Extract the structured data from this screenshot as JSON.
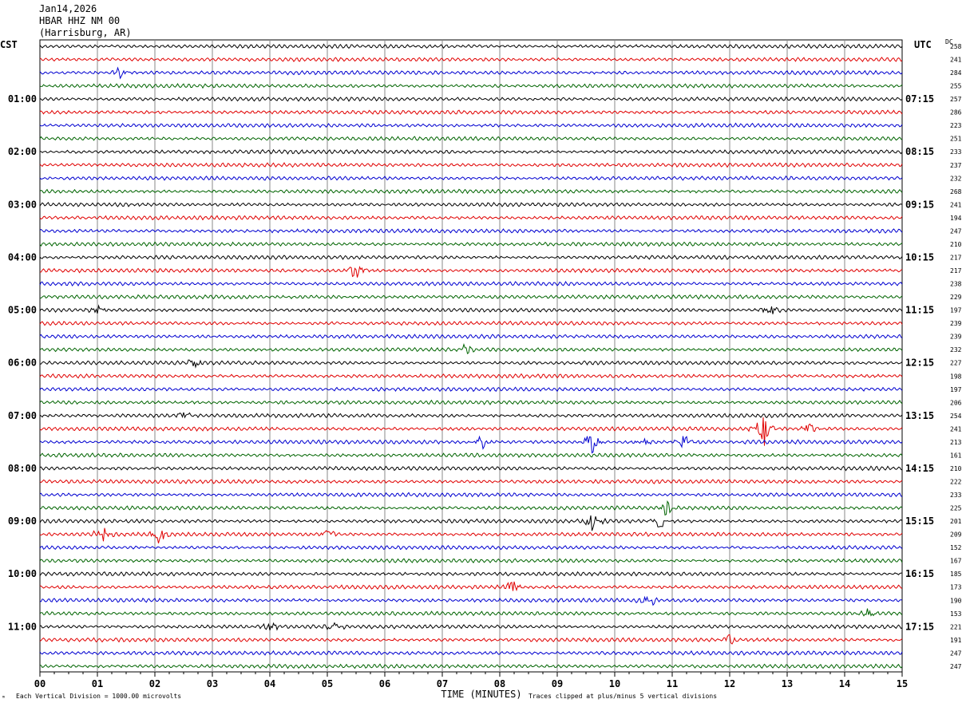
{
  "header": {
    "date": "Jan14,2026",
    "station": "HBAR HHZ NM 00",
    "location": "(Harrisburg, AR)"
  },
  "labels": {
    "left_tz": "CST",
    "right_tz": "UTC",
    "dc": "DC",
    "xlabel": "TIME (MINUTES)",
    "scale_note": "Each Vertical Division = 1000.00 microvolts",
    "clip_note": "Traces clipped at plus/minus 5 vertical divisions",
    "corner_mark": "ᵐ"
  },
  "chart_data": {
    "type": "line",
    "title": "HBAR HHZ NM 00 (Harrisburg, AR) Jan14,2026",
    "xlabel": "TIME (MINUTES)",
    "xlim": [
      0,
      15
    ],
    "x_ticks": [
      "00",
      "01",
      "02",
      "03",
      "04",
      "05",
      "06",
      "07",
      "08",
      "09",
      "10",
      "11",
      "12",
      "13",
      "14",
      "15"
    ],
    "lines_per_hour": 4,
    "line_minutes": 15,
    "colors": [
      "#000000",
      "#e00000",
      "#0000d0",
      "#006400"
    ],
    "left_time_labels": [
      "01:00",
      "02:00",
      "03:00",
      "04:00",
      "05:00",
      "06:00",
      "07:00",
      "08:00",
      "09:00",
      "10:00",
      "11:00"
    ],
    "right_time_labels": [
      "07:15",
      "08:15",
      "09:15",
      "10:15",
      "11:15",
      "12:15",
      "13:15",
      "14:15",
      "15:15",
      "16:15",
      "17:15"
    ],
    "dc_offsets": [
      258,
      241,
      284,
      255,
      257,
      286,
      223,
      251,
      233,
      237,
      232,
      268,
      241,
      194,
      247,
      210,
      217,
      217,
      238,
      229,
      197,
      239,
      239,
      232,
      227,
      198,
      197,
      206,
      254,
      241,
      213,
      161,
      210,
      222,
      233,
      225,
      201,
      209,
      152,
      167,
      185,
      173,
      190,
      153,
      221,
      191,
      247,
      247
    ],
    "events": [
      {
        "trace": 2,
        "minute": 1.4,
        "amp": 1.5
      },
      {
        "trace": 17,
        "minute": 5.5,
        "amp": 3
      },
      {
        "trace": 20,
        "minute": 1.0,
        "amp": 1.8
      },
      {
        "trace": 20,
        "minute": 12.7,
        "amp": 2
      },
      {
        "trace": 23,
        "minute": 7.4,
        "amp": 1.6
      },
      {
        "trace": 24,
        "minute": 2.7,
        "amp": 1.5
      },
      {
        "trace": 28,
        "minute": 2.5,
        "amp": 1.5
      },
      {
        "trace": 29,
        "minute": 12.6,
        "amp": 5
      },
      {
        "trace": 29,
        "minute": 13.4,
        "amp": 2
      },
      {
        "trace": 30,
        "minute": 7.7,
        "amp": 2.5
      },
      {
        "trace": 30,
        "minute": 9.6,
        "amp": 3.5
      },
      {
        "trace": 30,
        "minute": 10.5,
        "amp": 1.8
      },
      {
        "trace": 30,
        "minute": 11.2,
        "amp": 2
      },
      {
        "trace": 35,
        "minute": 10.9,
        "amp": 2
      },
      {
        "trace": 36,
        "minute": 9.6,
        "amp": 3
      },
      {
        "trace": 36,
        "minute": 10.8,
        "amp": 2
      },
      {
        "trace": 37,
        "minute": 1.1,
        "amp": 2.5
      },
      {
        "trace": 37,
        "minute": 2.1,
        "amp": 3
      },
      {
        "trace": 37,
        "minute": 5.0,
        "amp": 1.5
      },
      {
        "trace": 41,
        "minute": 8.2,
        "amp": 1.8
      },
      {
        "trace": 42,
        "minute": 10.6,
        "amp": 2.2
      },
      {
        "trace": 43,
        "minute": 14.4,
        "amp": 2
      },
      {
        "trace": 44,
        "minute": 5.1,
        "amp": 1.8
      },
      {
        "trace": 44,
        "minute": 4.0,
        "amp": 1.5
      },
      {
        "trace": 45,
        "minute": 12.0,
        "amp": 1.5
      }
    ]
  }
}
